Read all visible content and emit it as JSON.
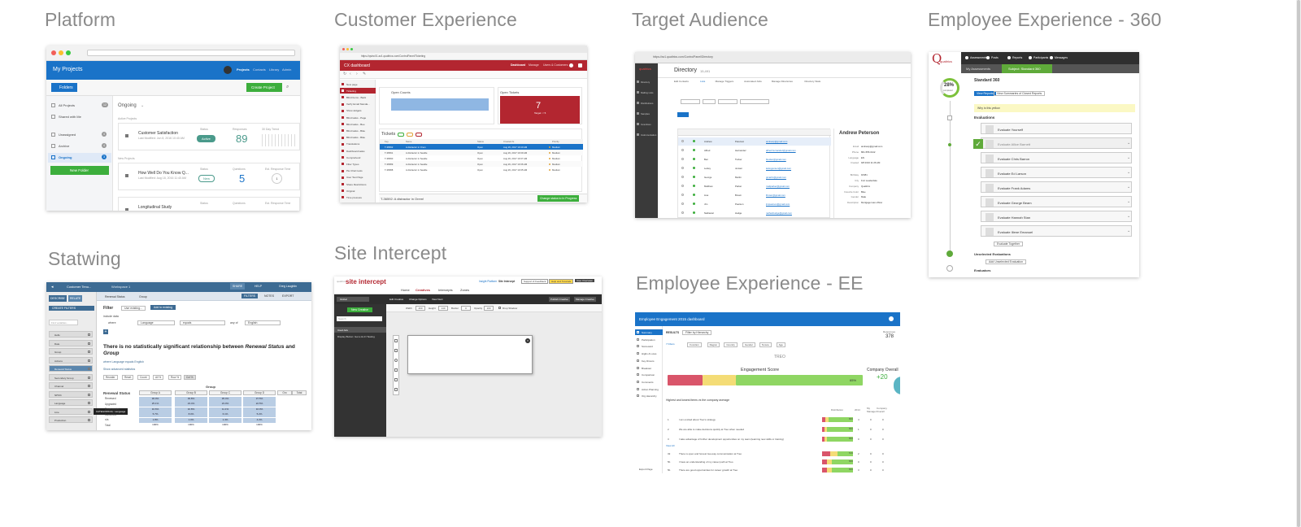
{
  "cards": {
    "platform": {
      "title": "Platform",
      "header": "My Projects",
      "folders_btn": "Folders",
      "create_btn": "Create Project",
      "nav": [
        "Projects",
        "Contacts",
        "Library",
        "Admin"
      ],
      "sidebar": [
        {
          "label": "All Projects",
          "count": "12"
        },
        {
          "label": "Shared with Me",
          "count": ""
        },
        {
          "label": "Unassigned",
          "count": "4"
        },
        {
          "label": "Archive",
          "count": "4"
        },
        {
          "label": "Ongoing",
          "count": "3"
        }
      ],
      "new_folder": "New Folder",
      "section": "Ongoing",
      "active_label": "Active Projects",
      "new_label": "New Projects",
      "projects": [
        {
          "name": "Customer Satisfaction",
          "meta": "Last Modified: Jun 8, 2016 10:40 AM",
          "status_label": "Status",
          "status": "Active",
          "metric_label": "Responses",
          "metric": "89",
          "extra_label": "30 Day Trend"
        },
        {
          "name": "How Well Do You Know Q...",
          "meta": "Last Modified: Aug 18, 2016 11:40 AM",
          "status_label": "Status",
          "status": "New",
          "metric_label": "Questions",
          "metric": "5",
          "extra_label": "Est. Response Time",
          "extra": "1"
        },
        {
          "name": "Longitudinal Study",
          "meta": "",
          "status_label": "Status",
          "status": "",
          "metric_label": "Questions",
          "metric": "",
          "extra_label": "Est. Response Time"
        }
      ]
    },
    "cx": {
      "title": "Customer Experience",
      "url": "https://qsinc01.az1.qualtrics.com/ControlPanel/Ticketing",
      "app": "CX dashboard",
      "nav": [
        "Dashboard",
        "Manage",
        "Users & Customers"
      ],
      "sidebar": [
        "New page",
        "Ticketing",
        "Blind Items - Back",
        "Verify Email Standa...",
        "Show widgets",
        "Blind tasks - Page",
        "Blind tasks - Bee",
        "Blind tasks - Bike",
        "Blind tasks - Bike",
        "Translations",
        "Dashboard tasks",
        "Comprehend",
        "Filter Types",
        "Pie Chart tests",
        "User Test Page",
        "Share Restrictions",
        "Original",
        "Time pressure"
      ],
      "open_counts": "Open Counts",
      "open_tickets": "Open Tickets",
      "tickets_value": "7",
      "tickets_sub": "Target: < 5",
      "tickets_panel": "Tickets",
      "columns": [
        "Key",
        "Name",
        "Status",
        "Created At",
        "Priority"
      ],
      "rows": [
        [
          "T-36592",
          "A distractor in Orem",
          "Open",
          "Aug 29, 2017 10:40 AM",
          "Medium"
        ],
        [
          "T-36591",
          "A distractor in Seattle",
          "Open",
          "Aug 29, 2017 10:39 AM",
          "Medium"
        ],
        [
          "T-36590",
          "A distractor in Seattle",
          "Open",
          "Aug 29, 2017 10:37 AM",
          "Medium"
        ],
        [
          "T-36589",
          "A distractor in Seattle",
          "Open",
          "Aug 29, 2017 10:36 AM",
          "Medium"
        ],
        [
          "T-36588",
          "A distractor in Seattle",
          "Open",
          "Aug 29, 2017 10:35 AM",
          "Medium"
        ]
      ],
      "footer_ticket": "T-36592: A distractor in Orem!",
      "footer_btn": "Change status to In Progress"
    },
    "ta": {
      "title": "Target Audience",
      "url": "https://az1.qualtrics.com/ControlPanel/Directory",
      "page_title": "Directory",
      "page_count": "15,491",
      "tabs": [
        "Edit Contacts",
        "Lists",
        "Manage Triggers",
        "Automated Jobs",
        "Manage Directories",
        "Directory Stats"
      ],
      "side": [
        "Directory",
        "Mailing Lists",
        "Distributions",
        "Samples",
        "Incentives",
        "Instrumentation"
      ],
      "contact_name": "Andrew Peterson",
      "contact_fields": [
        [
          "Email",
          "andrewp@gmail.com"
        ],
        [
          "Phone",
          "801-555-0142"
        ],
        [
          "Language",
          "EN"
        ],
        [
          "Created",
          "9/8 2016 11:26 AM"
        ],
        [
          "Birthday",
          "9/3/81"
        ],
        [
          "City",
          "Fort Lauderdale"
        ],
        [
          "Company",
          "Qualtrics"
        ],
        [
          "Favorite Color",
          "Blue"
        ],
        [
          "Gender",
          "Male"
        ],
        [
          "Description",
          "Mortgage loan officer"
        ]
      ],
      "rows": [
        [
          "Andrew",
          "Peterson",
          "andrewp@gmail.com"
        ],
        [
          "Alfred",
          "Hernandez",
          "alfred.hernandez@gmail.com"
        ],
        [
          "Ben",
          "Tucker",
          "btucker@gmail.com"
        ],
        [
          "Lesley",
          "Jensen",
          "lesleyjensen@gmail.com"
        ],
        [
          "George",
          "Martin",
          "gmartin@gmail.com"
        ],
        [
          "Matthew",
          "Parker",
          "mattparker@gmail.com"
        ],
        [
          "Lisa",
          "Brown",
          "lbrown@gmail.com"
        ],
        [
          "Jim",
          "Pearson",
          "jimpearson@gmail.com"
        ],
        [
          "Nathaniel",
          "Hodge",
          "nathanhodge@gmail.com"
        ]
      ]
    },
    "ee360": {
      "title": "Employee Experience - 360",
      "brand": "qualtrics",
      "nav": [
        "Assessments",
        "Posts",
        "Reports",
        "Participants",
        "Messages"
      ],
      "tabs": [
        "My Assessments",
        "Subject: Standard 360"
      ],
      "heading": "Standard 360",
      "percent": "28%",
      "percent_sub": "completed",
      "btn_reports": "View Reports",
      "btn_summary": "View Summaries of Closed Reports",
      "note": "Why is this yellow",
      "evaluations": "Evaluations",
      "items": [
        "Evaluate Yourself",
        "Evaluate Allice Barnett",
        "Evaluate Chris Barron",
        "Evaluate Ed Larson",
        "Evaluate Frank Adams",
        "Evaluate George Beam",
        "Evaluate Hannah Stan",
        "Evaluate Illene Emanuel"
      ],
      "eval_together": "Evaluate Together",
      "unselected": "Unselected Evaluations",
      "add_eval": "Add Unselected Evaluation",
      "footer": "Evaluators"
    },
    "statwing": {
      "title": "Statwing",
      "dataset": "Customer Tenu...",
      "workspace": "Workspace 1",
      "top_btns": [
        "SHARE",
        "HELP"
      ],
      "user": "Greg Laughlin",
      "describe": "DESCRIBE",
      "relate": "RELATE",
      "create_filters": "CREATE FILTERS",
      "find": "Find variables...",
      "vars": [
        "Hello",
        "Date",
        "Group",
        "Actions",
        "Renewal Status",
        "Secondary Group",
        "Channel",
        "NPS%",
        "Language",
        "Line",
        "Production"
      ],
      "tooltip": "CATEGORICAL: Language",
      "breadcrumb": [
        "Renewal Status",
        "Group"
      ],
      "filters_btns": [
        "FILTERS",
        "NOTES",
        "EXPORT"
      ],
      "filter_label": "Filter",
      "use_existing": "Use existing...",
      "add_existing": "Add to existing",
      "include": "include data",
      "where": "where",
      "field": "Language",
      "op": "equals",
      "anyof": "any of",
      "value": "English",
      "headline_1": "There is no statistically significant relationship between",
      "headline_var1": "Renewal Status",
      "headline_and": "and",
      "headline_var2": "Group",
      "where_lang": "where Language equals English",
      "advanced": "Show advanced statistics",
      "actions": [
        "Reorder",
        "Reset",
        "Count",
        "All %",
        "Row %",
        "Col %"
      ],
      "group_header": "Group",
      "row_header": "Renewal Status",
      "cols": [
        "Group A",
        "Group B",
        "Group C",
        "Group D",
        "Gro",
        "Total"
      ],
      "rows": [
        [
          "Renewed",
          "36.0%",
          "39.8%",
          "35.4%",
          "37.5%"
        ],
        [
          "Upgraded",
          "25.1%",
          "23.4%",
          "23.0%",
          "22.5%"
        ],
        [
          "Downgraded",
          "10.6%",
          "10.8%",
          "11.1%",
          "10.0%"
        ],
        [
          "Cancelled",
          "5.7%",
          "8.0%",
          "6.1%",
          "5.2%"
        ],
        [
          "n/a",
          "1.8%",
          "1.0%",
          "1.4%",
          "4.2%"
        ],
        [
          "Total",
          "100%",
          "100%",
          "100%",
          "100%"
        ]
      ]
    },
    "si": {
      "title": "Site Intercept",
      "logo_top": "qualtrics",
      "logo_main": "site intercept",
      "top_links": [
        "Insight Platform",
        "Site Intercept"
      ],
      "top_btns": [
        "Support & Feedback",
        "Help and Tutorials",
        "User Overview"
      ],
      "nav": [
        "Home",
        "Creatives",
        "Intercepts",
        "Zones"
      ],
      "toolbar": [
        "Edit Creative",
        "Change Options",
        "View Next"
      ],
      "right_btns": [
        "Publish Creative",
        "Manage Creative"
      ],
      "menu": "Global",
      "new_btn": "New Creative",
      "search": "Search",
      "list_header": "Used Ads",
      "list_item": "Display Button: Get a Hi-Fi Tasting",
      "size_labels": [
        "Width",
        "Height",
        "Border",
        "Opacity"
      ],
      "size_values": [
        "400",
        "140",
        "0",
        "100"
      ],
      "drop_shadow": "Drop Shadow"
    },
    "eee": {
      "title": "Employee Experience - EE",
      "header": "Employee Engagement 2015 dashboard",
      "sidebar": [
        "Summary",
        "Participation",
        "Scorecard",
        "Highs & Lows",
        "Key Drivers",
        "Breakout",
        "Comparison",
        "Comments",
        "Action Planning",
        "Org Hierarchy"
      ],
      "tabs": [
        "RESULTS",
        "Filter by Hierarchy"
      ],
      "filters": [
        "7 Filters",
        "Function",
        "Region",
        "Country",
        "Gender",
        "Tenure",
        "Age"
      ],
      "responses_label": "Responses",
      "responses": "378",
      "logo": "TREO",
      "engagement_label": "Engagement Score",
      "engagement_value": "65%",
      "engagement_pct": 65,
      "company_label": "Company Overall",
      "company_value": "+20",
      "table_title": "Highest and lowest items vs the company average",
      "cols": [
        "Distribution",
        "2014",
        "My Manager",
        "Company Overall"
      ],
      "items": [
        {
          "n": "1",
          "text": "I am excited about Treo's strategy",
          "pct": "80%",
          "a": "4",
          "b": "0",
          "c": "0"
        },
        {
          "n": "2",
          "text": "We are able to make decisions quickly at Treo when needed",
          "pct": "89%",
          "a": "1",
          "b": "0",
          "c": "0"
        },
        {
          "n": "3",
          "text": "I take advantage of further development opportunities on my team (learning new skills or training)",
          "pct": "86%",
          "a": "0",
          "b": "0",
          "c": "0"
        },
        {
          "n": "32",
          "text": "There is open and honest two-way communication at Treo",
          "pct": "51%",
          "a": "2",
          "b": "0",
          "c": "0"
        },
        {
          "n": "5b",
          "text": "I have an understanding of my career path at Treo",
          "pct": "69%",
          "a": "0",
          "b": "0",
          "c": "0"
        },
        {
          "n": "5b",
          "text": "There are good opportunities for career growth at Treo",
          "pct": "69%",
          "a": "3",
          "b": "0",
          "c": "0"
        }
      ],
      "view_all": "View All",
      "export": "Export Page"
    }
  },
  "colors": {
    "qualtrics_blue": "#1a73c8",
    "qualtrics_red": "#b32630",
    "green": "#3cae3c",
    "title_gray": "#8a8a8a"
  }
}
